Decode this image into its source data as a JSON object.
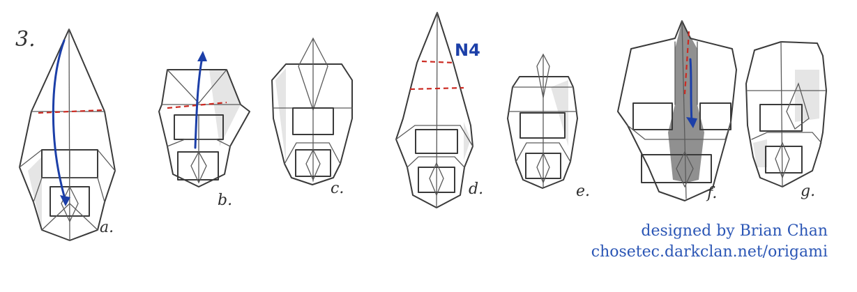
{
  "step_number": "3.",
  "step_labels": [
    "a.",
    "b.",
    "c.",
    "d.",
    "e.",
    "f.",
    "g."
  ],
  "symbols": {
    "repeat_mark": "N4"
  },
  "colors": {
    "pencil": "#3a3a3a",
    "fold_line": "#cc2a22",
    "arrow": "#1c3fa8",
    "credit_text": "#2b56b5"
  },
  "icons": [
    "fold-arrow-icon",
    "valley-fold-line-icon"
  ],
  "credits": {
    "line1": "designed by Brian Chan",
    "line2": "chosetec.darkclan.net/origami"
  }
}
